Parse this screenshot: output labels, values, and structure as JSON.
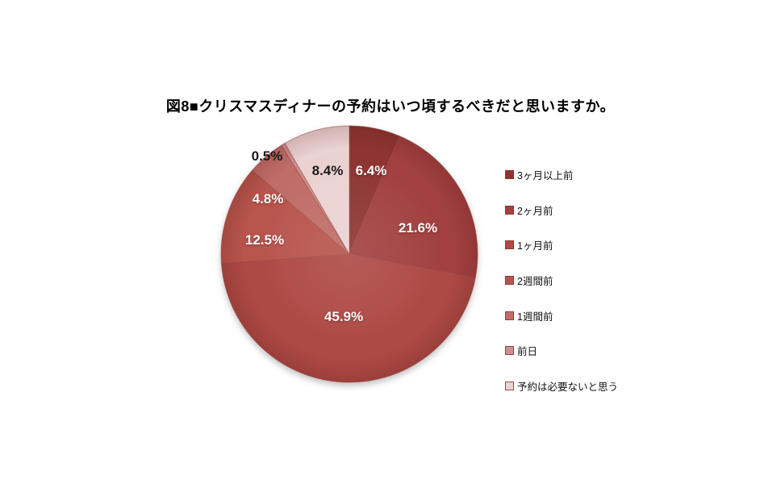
{
  "page": {
    "background": "#ffffff"
  },
  "chart_data": {
    "type": "pie",
    "title": "図8■クリスマスディナーの予約はいつ頃するべきだと思いますか。",
    "legend_position": "right",
    "start_angle_deg": 0,
    "direction": "clockwise",
    "slice_border_color": "#9c4a45",
    "slices": [
      {
        "label": "3ヶ月以上前",
        "value": 6.4,
        "pct_label": "6.4%",
        "color": "#8e3533",
        "pct_label_color": "#ffffff"
      },
      {
        "label": "2ヶ月前",
        "value": 21.6,
        "pct_label": "21.6%",
        "color": "#a24140",
        "pct_label_color": "#ffffff"
      },
      {
        "label": "1ヶ月前",
        "value": 45.9,
        "pct_label": "45.9%",
        "color": "#ae4a45",
        "pct_label_color": "#ffffff"
      },
      {
        "label": "2週間前",
        "value": 12.5,
        "pct_label": "12.5%",
        "color": "#b8544e",
        "pct_label_color": "#ffffff"
      },
      {
        "label": "1週間前",
        "value": 4.8,
        "pct_label": "4.8%",
        "color": "#c06d68",
        "pct_label_color": "#ffffff"
      },
      {
        "label": "前日",
        "value": 0.5,
        "pct_label": "0.5%",
        "color": "#cc908d",
        "pct_label_color": "#1a1a1a"
      },
      {
        "label": "予約は必要ないと思う",
        "value": 8.4,
        "pct_label": "8.4%",
        "color": "#ebd3d2",
        "pct_label_color": "#1a1a1a"
      }
    ]
  }
}
